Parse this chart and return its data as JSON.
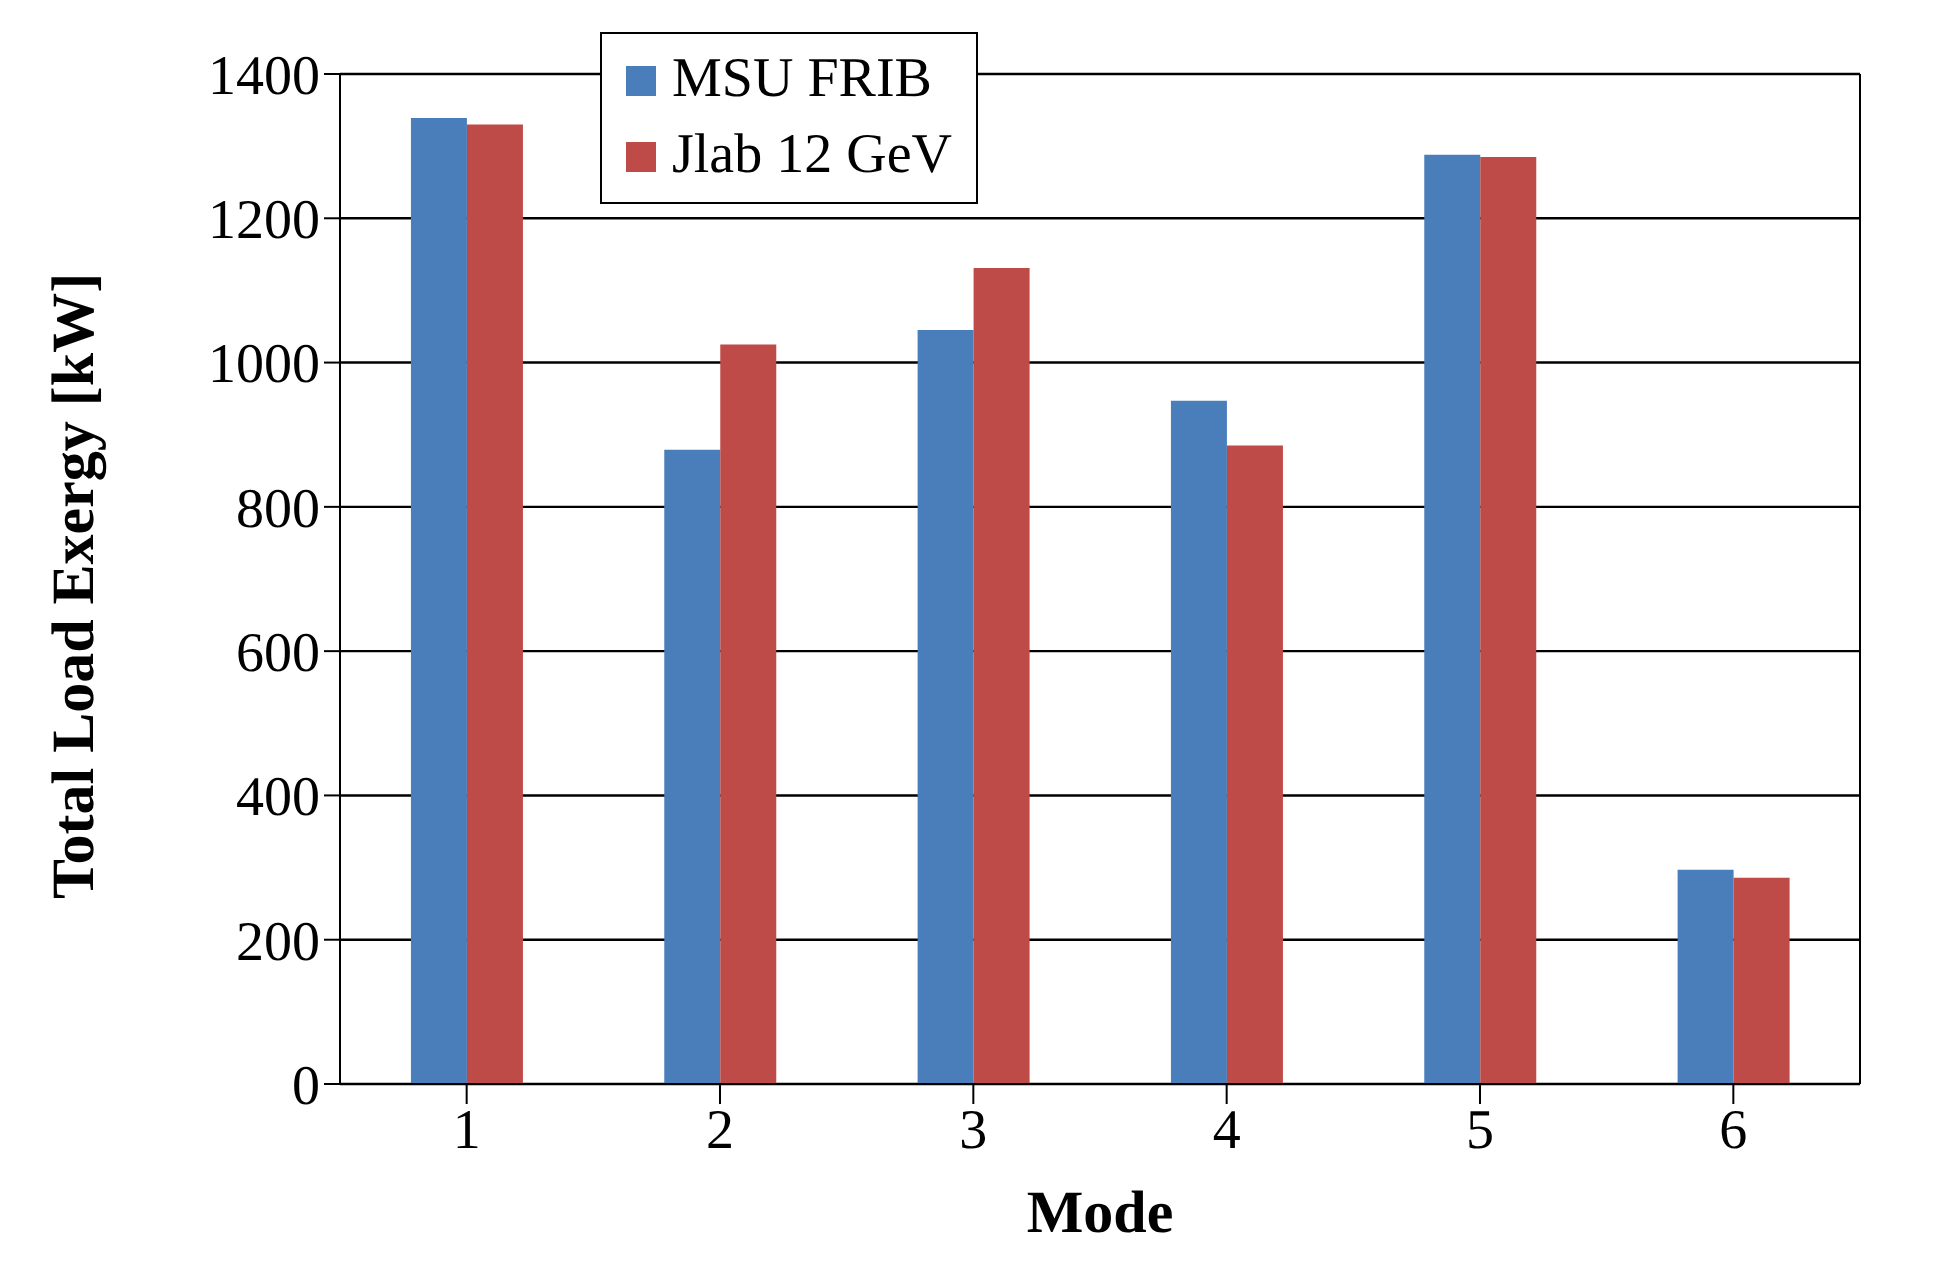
{
  "chart_data": {
    "type": "bar",
    "xlabel": "Mode",
    "ylabel": "Total Load Exergy [kW]",
    "categories": [
      "1",
      "2",
      "3",
      "4",
      "5",
      "6"
    ],
    "series": [
      {
        "name": "MSU FRIB",
        "color": "#4a7ebb",
        "values": [
          1339,
          879,
          1045,
          947,
          1288,
          297
        ]
      },
      {
        "name": "Jlab 12 GeV",
        "color": "#be4b48",
        "values": [
          1330,
          1025,
          1131,
          885,
          1285,
          286
        ]
      }
    ],
    "ylim": [
      0,
      1400
    ],
    "yticks": [
      0,
      200,
      400,
      600,
      800,
      1000,
      1200,
      1400
    ],
    "grid": "y",
    "legend": "top"
  }
}
